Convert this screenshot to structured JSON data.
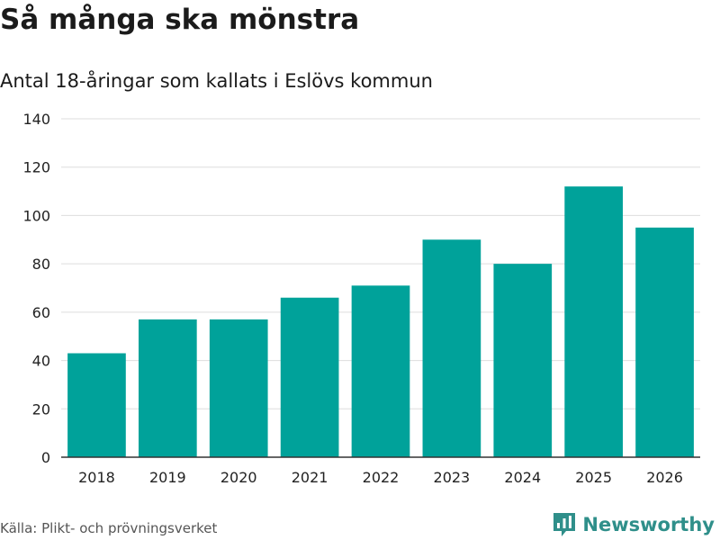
{
  "chart_data": {
    "type": "bar",
    "title": "Så många ska mönstra",
    "subtitle": "Antal 18-åringar som kallats i Eslövs kommun",
    "categories": [
      "2018",
      "2019",
      "2020",
      "2021",
      "2022",
      "2023",
      "2024",
      "2025",
      "2026"
    ],
    "values": [
      43,
      57,
      57,
      66,
      71,
      90,
      80,
      112,
      95
    ],
    "xlabel": "",
    "ylabel": "",
    "ylim": [
      0,
      140
    ],
    "yticks": [
      0,
      20,
      40,
      60,
      80,
      100,
      120,
      140
    ],
    "grid": true,
    "legend": "none"
  },
  "footer": {
    "source": "Källa: Plikt- och prövningsverket",
    "brand": "Newsworthy"
  },
  "colors": {
    "bar": "#00a29a",
    "brand": "#2f8f8a",
    "grid": "#dddddd",
    "axis": "#333333",
    "tick_text": "#222222"
  },
  "icons": {
    "brand_logo": "newsworthy-logo-icon"
  }
}
